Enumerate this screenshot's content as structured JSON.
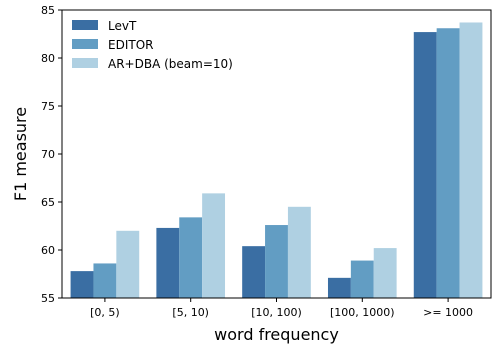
{
  "chart_data": {
    "type": "bar",
    "title": "",
    "xlabel": "word frequency",
    "ylabel": "F1 measure",
    "ylim": [
      55,
      85
    ],
    "yticks": [
      55,
      60,
      65,
      70,
      75,
      80,
      85
    ],
    "grid": false,
    "legend_position": "top-left",
    "categories": [
      "[0, 5)",
      "[5, 10)",
      "[10, 100)",
      "[100, 1000)",
      ">= 1000"
    ],
    "series": [
      {
        "name": "LevT",
        "color": "#3a6ea3",
        "values": [
          57.8,
          62.3,
          60.4,
          57.1,
          82.7
        ]
      },
      {
        "name": "EDITOR",
        "color": "#629dc3",
        "values": [
          58.6,
          63.4,
          62.6,
          58.9,
          83.1
        ]
      },
      {
        "name": "AR+DBA (beam=10)",
        "color": "#afd0e2",
        "values": [
          62.0,
          65.9,
          64.5,
          60.2,
          83.7
        ]
      }
    ]
  }
}
